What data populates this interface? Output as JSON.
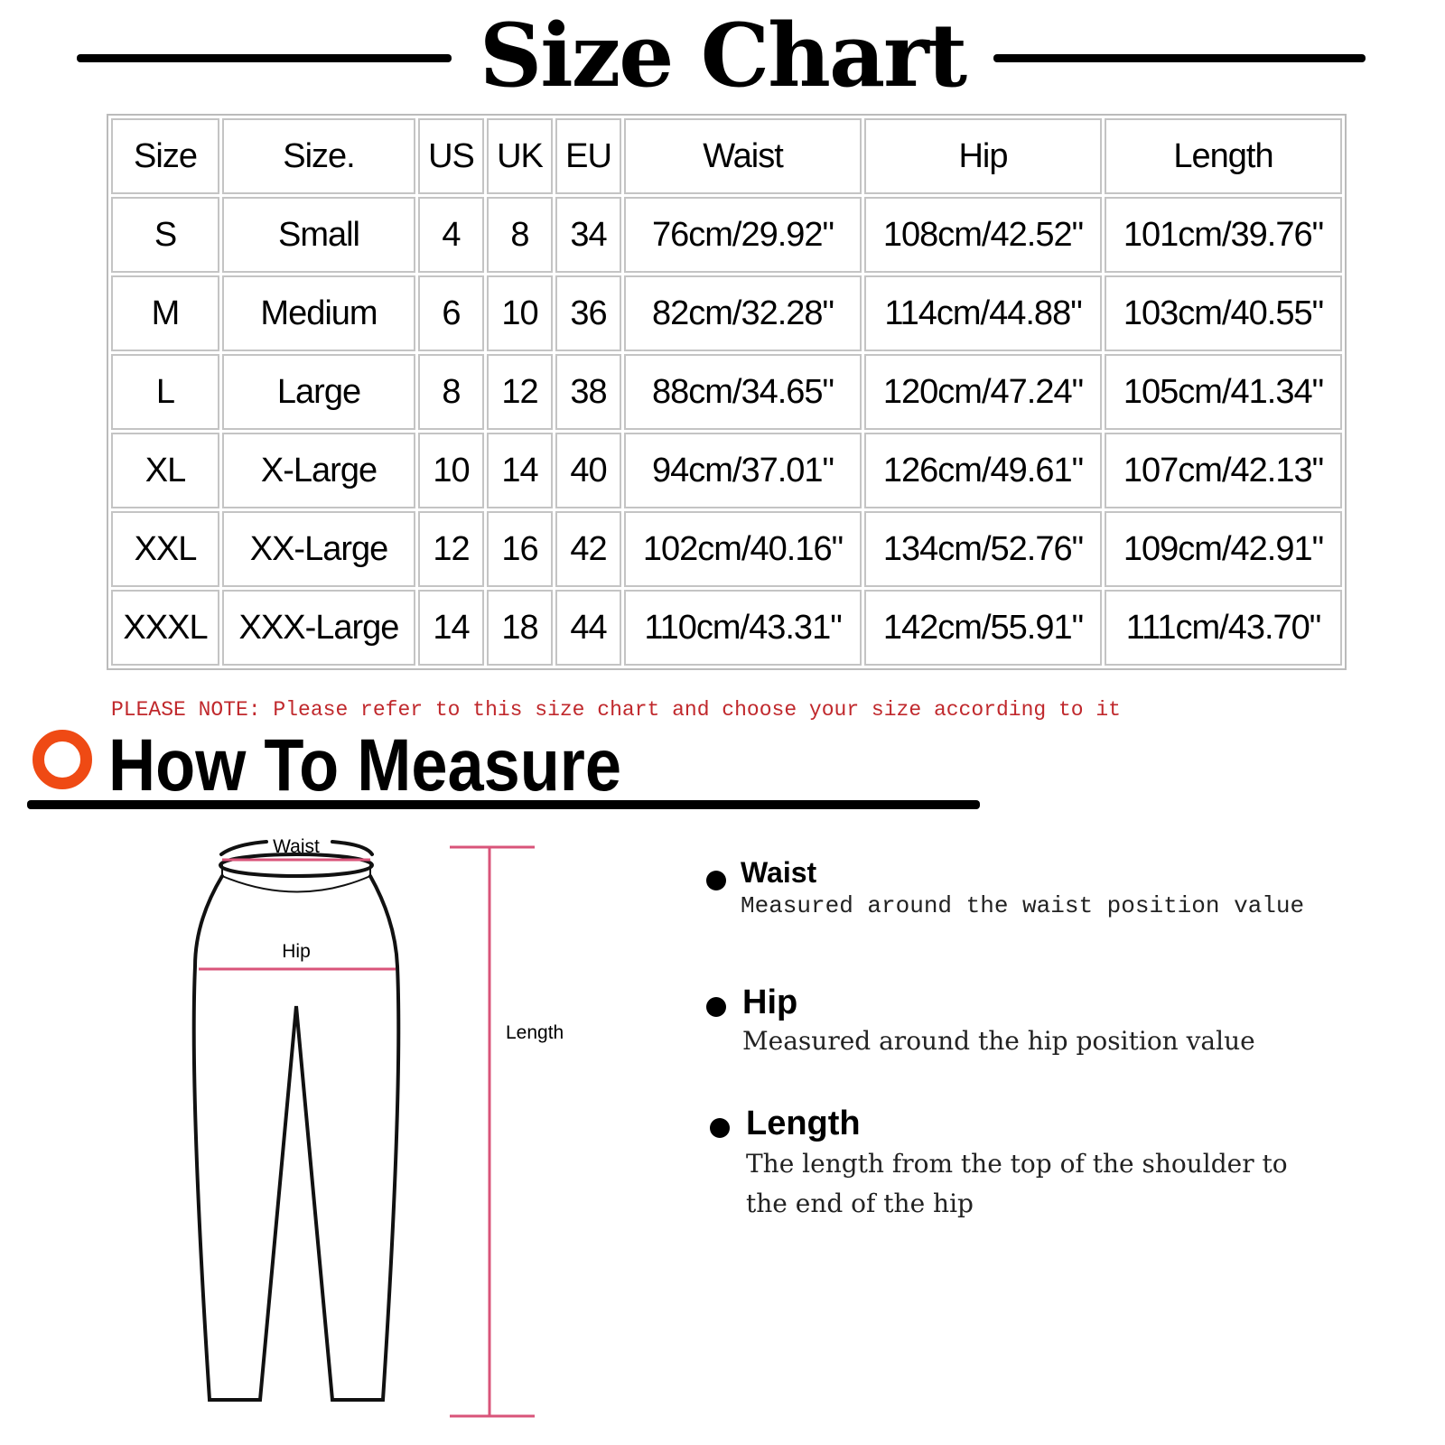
{
  "header": {
    "title": "Size Chart"
  },
  "table": {
    "columns": [
      "Size",
      "Size.",
      "US",
      "UK",
      "EU",
      "Waist",
      "Hip",
      "Length"
    ],
    "rows": [
      [
        "S",
        "Small",
        "4",
        "8",
        "34",
        "76cm/29.92\"",
        "108cm/42.52\"",
        "101cm/39.76\""
      ],
      [
        "M",
        "Medium",
        "6",
        "10",
        "36",
        "82cm/32.28\"",
        "114cm/44.88\"",
        "103cm/40.55\""
      ],
      [
        "L",
        "Large",
        "8",
        "12",
        "38",
        "88cm/34.65\"",
        "120cm/47.24\"",
        "105cm/41.34\""
      ],
      [
        "XL",
        "X-Large",
        "10",
        "14",
        "40",
        "94cm/37.01\"",
        "126cm/49.61\"",
        "107cm/42.13\""
      ],
      [
        "XXL",
        "XX-Large",
        "12",
        "16",
        "42",
        "102cm/40.16\"",
        "134cm/52.76\"",
        "109cm/42.91\""
      ],
      [
        "XXXL",
        "XXX-Large",
        "14",
        "18",
        "44",
        "110cm/43.31\"",
        "142cm/55.91\"",
        "111cm/43.70\""
      ]
    ]
  },
  "note": "PLEASE NOTE: Please refer to this size chart and choose your size according to it",
  "measure": {
    "title": "How To Measure",
    "accent_color": "#ef4a14",
    "diagram": {
      "waist_label": "Waist",
      "hip_label": "Hip",
      "length_label": "Length",
      "line_color": "#d9547a"
    },
    "items": [
      {
        "title": "Waist",
        "desc": [
          "Measured around the waist position value"
        ]
      },
      {
        "title": "Hip",
        "desc": [
          "Measured around the  hip position value"
        ]
      },
      {
        "title": "Length",
        "desc": [
          "The length from the top of the shoulder to",
          "the end of the hip"
        ]
      }
    ]
  }
}
